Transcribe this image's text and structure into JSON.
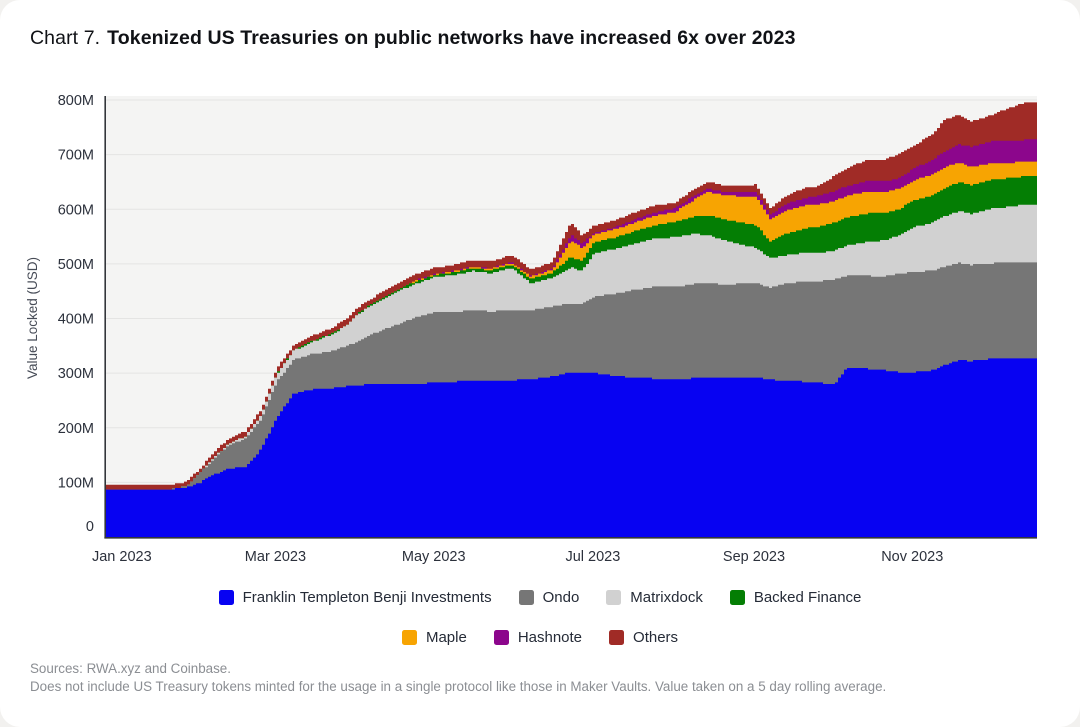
{
  "header": {
    "title_prefix": "Chart 7.",
    "title": "Tokenized US Treasuries on public networks have increased 6x over 2023"
  },
  "footer": {
    "line1": "Sources: RWA.xyz and Coinbase.",
    "line2": "Does not include US Treasury tokens minted for the usage in a single protocol like those in Maker Vaults. Value taken on a 5 day rolling average."
  },
  "chart_data": {
    "type": "area",
    "stacked": true,
    "title": "Tokenized US Treasuries on public networks have increased 6x over 2023",
    "xlabel": "",
    "ylabel": "Value Locked (USD)",
    "units": "USD millions",
    "ylim_m": [
      0,
      800
    ],
    "grid": true,
    "plot_bg": "#f4f4f3",
    "grid_color": "#e4e4e3",
    "axis_color": "#33363b",
    "tick_color": "#2c313c",
    "y_ticks": [
      {
        "value": 0,
        "label": "0"
      },
      {
        "value": 100,
        "label": "100M"
      },
      {
        "value": 200,
        "label": "200M"
      },
      {
        "value": 300,
        "label": "300M"
      },
      {
        "value": 400,
        "label": "400M"
      },
      {
        "value": 500,
        "label": "500M"
      },
      {
        "value": 600,
        "label": "600M"
      },
      {
        "value": 700,
        "label": "700M"
      },
      {
        "value": 800,
        "label": "800M"
      }
    ],
    "x_ticks": [
      {
        "f": 0.017,
        "label": "Jan 2023"
      },
      {
        "f": 0.182,
        "label": "Mar 2023"
      },
      {
        "f": 0.352,
        "label": "May 2023"
      },
      {
        "f": 0.523,
        "label": "Jul 2023"
      },
      {
        "f": 0.696,
        "label": "Sep 2023"
      },
      {
        "f": 0.866,
        "label": "Nov 2023"
      }
    ],
    "x_f": [
      0.0,
      0.02,
      0.045,
      0.07,
      0.085,
      0.1,
      0.115,
      0.13,
      0.148,
      0.165,
      0.182,
      0.2,
      0.22,
      0.24,
      0.258,
      0.269,
      0.29,
      0.31,
      0.33,
      0.352,
      0.372,
      0.392,
      0.412,
      0.434,
      0.455,
      0.478,
      0.498,
      0.51,
      0.523,
      0.545,
      0.565,
      0.588,
      0.61,
      0.63,
      0.645,
      0.665,
      0.68,
      0.697,
      0.712,
      0.73,
      0.75,
      0.765,
      0.781,
      0.795,
      0.815,
      0.835,
      0.85,
      0.868,
      0.885,
      0.9,
      0.915,
      0.928,
      0.95,
      0.97,
      0.985,
      1.0
    ],
    "series": [
      {
        "id": "franklin",
        "name": "Franklin Templeton Benji Investments",
        "color": "#0702f2",
        "values_m": [
          88,
          88,
          87,
          88,
          90,
          100,
          114,
          126,
          127,
          160,
          218,
          262,
          270,
          272,
          276,
          278,
          280,
          280,
          281,
          282,
          284,
          286,
          286,
          287,
          289,
          294,
          302,
          300,
          300,
          295,
          292,
          290,
          288,
          291,
          293,
          292,
          293,
          293,
          288,
          286,
          284,
          282,
          280,
          310,
          308,
          305,
          302,
          302,
          305,
          315,
          324,
          322,
          326,
          327,
          328,
          328
        ]
      },
      {
        "id": "ondo",
        "name": "Ondo",
        "color": "#767676",
        "values_m": [
          0,
          0,
          0,
          0,
          3,
          18,
          30,
          42,
          52,
          55,
          66,
          62,
          65,
          68,
          74,
          80,
          95,
          108,
          120,
          130,
          128,
          129,
          127,
          128,
          126,
          128,
          126,
          127,
          140,
          150,
          160,
          168,
          170,
          172,
          172,
          170,
          171,
          172,
          168,
          178,
          184,
          186,
          192,
          168,
          170,
          172,
          180,
          184,
          182,
          180,
          178,
          176,
          175,
          176,
          176,
          176
        ]
      },
      {
        "id": "matrixdock",
        "name": "Matrixdock",
        "color": "#d1d1d1",
        "values_m": [
          0,
          0,
          0,
          0,
          0,
          0,
          2,
          3,
          5,
          8,
          14,
          17,
          22,
          30,
          38,
          50,
          55,
          60,
          62,
          64,
          67,
          72,
          70,
          78,
          50,
          52,
          66,
          60,
          80,
          82,
          84,
          88,
          91,
          92,
          88,
          80,
          72,
          64,
          55,
          52,
          52,
          52,
          52,
          56,
          62,
          66,
          70,
          82,
          88,
          92,
          95,
          94,
          100,
          102,
          104,
          104
        ]
      },
      {
        "id": "backed",
        "name": "Backed Finance",
        "color": "#047e04",
        "values_m": [
          0,
          0,
          0,
          0,
          0,
          0,
          0,
          0,
          0,
          0,
          1,
          1,
          2,
          2,
          2,
          2,
          3,
          3,
          4,
          4,
          5,
          5,
          5,
          6,
          8,
          10,
          19,
          18,
          19,
          21,
          23,
          25,
          28,
          32,
          36,
          38,
          40,
          42,
          30,
          40,
          45,
          48,
          51,
          51,
          52,
          50,
          48,
          49,
          50,
          52,
          52,
          52,
          53,
          52,
          52,
          52
        ]
      },
      {
        "id": "maple",
        "name": "Maple",
        "color": "#f7a402",
        "values_m": [
          0,
          0,
          0,
          0,
          0,
          0,
          0,
          0,
          0,
          0,
          0,
          0,
          0,
          0,
          0,
          0,
          0,
          1,
          1,
          1,
          2,
          2,
          3,
          3,
          4,
          5,
          31,
          24,
          14,
          15,
          16,
          17,
          18,
          30,
          43,
          45,
          48,
          52,
          40,
          42,
          42,
          41,
          40,
          40,
          40,
          38,
          37,
          37,
          38,
          38,
          36,
          34,
          30,
          28,
          27,
          27
        ]
      },
      {
        "id": "hashnote",
        "name": "Hashnote",
        "color": "#8c068c",
        "values_m": [
          0,
          0,
          0,
          0,
          0,
          0,
          0,
          0,
          0,
          0,
          0,
          0,
          0,
          0,
          0,
          0,
          0,
          0,
          1,
          1,
          1,
          1,
          1,
          1,
          1,
          2,
          9,
          8,
          4,
          4,
          5,
          6,
          7,
          7,
          5,
          6,
          7,
          9,
          9,
          12,
          14,
          16,
          18,
          18,
          19,
          20,
          20,
          22,
          26,
          30,
          34,
          36,
          40,
          40,
          40,
          40
        ]
      },
      {
        "id": "others",
        "name": "Others",
        "color": "#a02b26",
        "values_m": [
          8,
          8,
          8,
          8,
          8,
          8,
          9,
          9,
          9,
          9,
          9,
          9,
          9,
          10,
          10,
          10,
          10,
          11,
          11,
          11,
          11,
          12,
          12,
          14,
          12,
          12,
          22,
          15,
          13,
          13,
          13,
          13,
          10,
          12,
          13,
          12,
          12,
          13,
          12,
          16,
          18,
          18,
          28,
          33,
          38,
          40,
          43,
          42,
          47,
          57,
          54,
          46,
          49,
          61,
          68,
          70
        ]
      }
    ],
    "legend_rows": [
      [
        0,
        1,
        2,
        3
      ],
      [
        4,
        5,
        6
      ]
    ],
    "legend_position": "bottom"
  }
}
